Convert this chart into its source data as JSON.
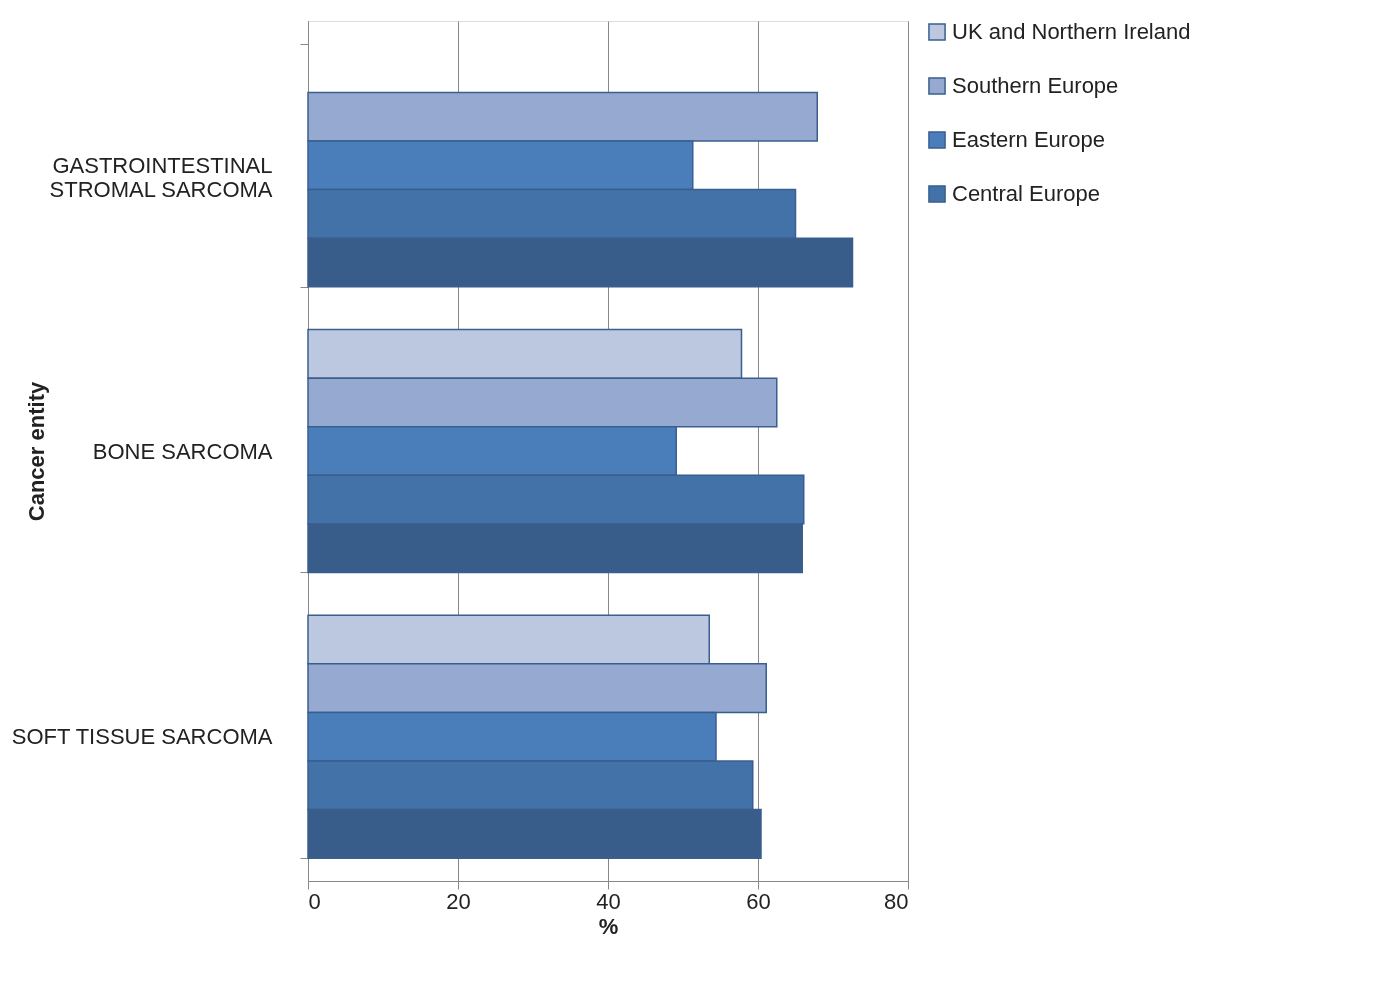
{
  "chart_data": {
    "type": "bar",
    "orientation": "horizontal",
    "xlabel": "%",
    "ylabel": "Cancer entity",
    "categories": [
      "GASTROINTESTINAL STROMAL SARCOMA",
      "BONE SARCOMA",
      "SOFT TISSUE SARCOMA"
    ],
    "series": [
      {
        "name": "UK and Northern Ireland",
        "color": "#bcc8e0",
        "values": [
          null,
          57.8,
          53.5
        ]
      },
      {
        "name": "Southern Europe",
        "color": "#95a9d1",
        "values": [
          67.9,
          62.5,
          61.1
        ]
      },
      {
        "name": "Eastern Europe",
        "color": "#4a7ebb",
        "values": [
          51.3,
          49.1,
          54.4
        ]
      },
      {
        "name": "Central Europe",
        "color": "#4272a8",
        "values": [
          65.0,
          66.1,
          59.3
        ]
      },
      {
        "color": "#395d8b",
        "values": [
          72.6,
          65.9,
          60.4
        ]
      }
    ],
    "xlim": [
      0,
      80
    ],
    "xticks": [
      0,
      20,
      40,
      60,
      80
    ],
    "grid": "x",
    "legend": "right"
  }
}
